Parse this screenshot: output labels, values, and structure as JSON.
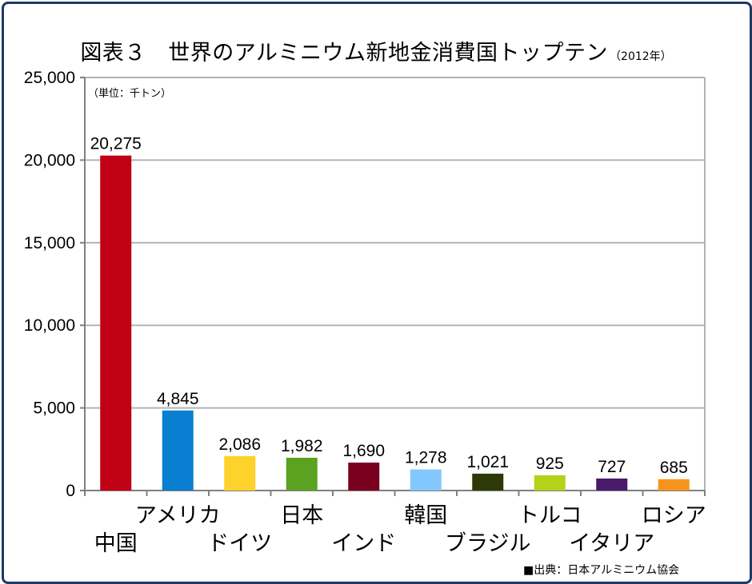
{
  "title": "図表３　世界のアルミニウム新地金消費国トップテン",
  "year_note": "（2012年）",
  "unit_note": "（単位：千トン）",
  "source": "■出典：日本アルミニウム協会",
  "chart_data": {
    "type": "bar",
    "title": "図表３　世界のアルミニウム新地金消費国トップテン",
    "subtitle": "（2012年）",
    "unit": "（単位：千トン）",
    "xlabel": "",
    "ylabel": "",
    "ylim": [
      0,
      25000
    ],
    "yticks": [
      0,
      5000,
      10000,
      15000,
      20000,
      25000
    ],
    "ytick_labels": [
      "0",
      "5,000",
      "10,000",
      "15,000",
      "20,000",
      "25,000"
    ],
    "grid": true,
    "legend": "none",
    "categories": [
      "中国",
      "アメリカ",
      "ドイツ",
      "日本",
      "インド",
      "韓国",
      "ブラジル",
      "トルコ",
      "イタリア",
      "ロシア"
    ],
    "values": [
      20275,
      4845,
      2086,
      1982,
      1690,
      1278,
      1021,
      925,
      727,
      685
    ],
    "value_labels": [
      "20,275",
      "4,845",
      "2,086",
      "1,982",
      "1,690",
      "1,278",
      "1,021",
      "925",
      "727",
      "685"
    ],
    "colors": [
      "#c00014",
      "#0a7fd1",
      "#fdd22a",
      "#5aa21f",
      "#7a0020",
      "#82c8ff",
      "#2d3a08",
      "#b5d11a",
      "#4a1a6b",
      "#f7941d"
    ]
  }
}
